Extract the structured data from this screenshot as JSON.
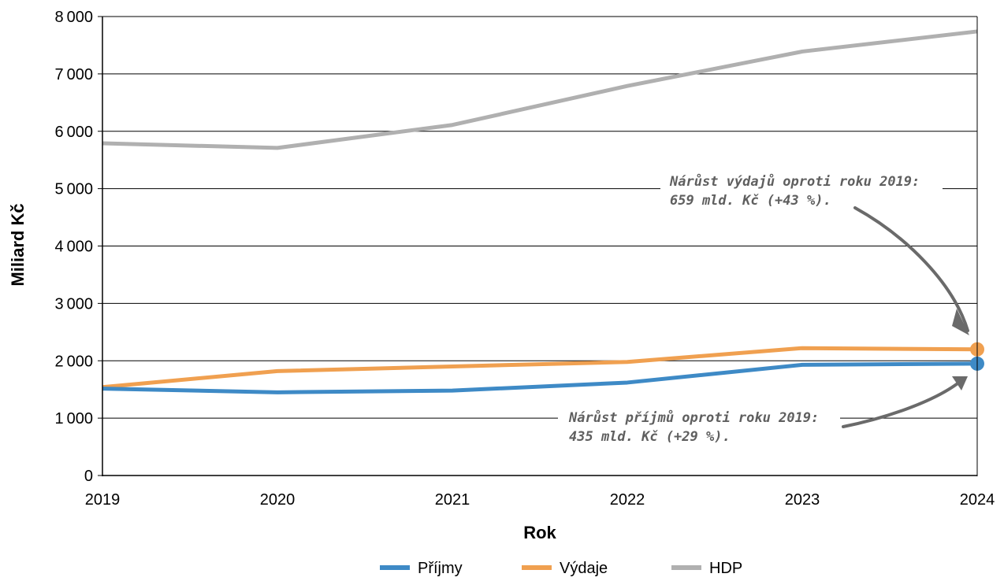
{
  "chart_data": {
    "type": "line",
    "xlabel": "Rok",
    "ylabel": "Miliard Kč",
    "x": [
      2019,
      2020,
      2021,
      2022,
      2023,
      2024
    ],
    "xlim": [
      2019,
      2024
    ],
    "ylim": [
      0,
      8000
    ],
    "ytick_labels": [
      "0",
      "1000",
      "2000",
      "3000",
      "4000",
      "5000",
      "6000",
      "7000",
      "8000"
    ],
    "xtick_labels": [
      "2019",
      "2020",
      "2021",
      "2022",
      "2023",
      "2024"
    ],
    "grid": "horizontal",
    "legend_position": "bottom",
    "series": [
      {
        "name": "Příjmy",
        "color": "#3e8ac6",
        "values": [
          1515,
          1450,
          1480,
          1620,
          1930,
          1950
        ]
      },
      {
        "name": "Výdaje",
        "color": "#f0a050",
        "values": [
          1540,
          1820,
          1900,
          1980,
          2220,
          2199
        ]
      },
      {
        "name": "HDP",
        "color": "#b0b0b0",
        "values": [
          5790,
          5710,
          6110,
          6790,
          7390,
          7740
        ]
      }
    ],
    "annotations": [
      {
        "lines": [
          "Nárůst výdajů oproti roku 2019:",
          "659 mld. Kč (+43 %)."
        ],
        "target_series": "Výdaje",
        "target_x": 2024
      },
      {
        "lines": [
          "Nárůst příjmů oproti roku 2019:",
          "435 mld. Kč (+29 %)."
        ],
        "target_series": "Příjmy",
        "target_x": 2024
      }
    ]
  }
}
